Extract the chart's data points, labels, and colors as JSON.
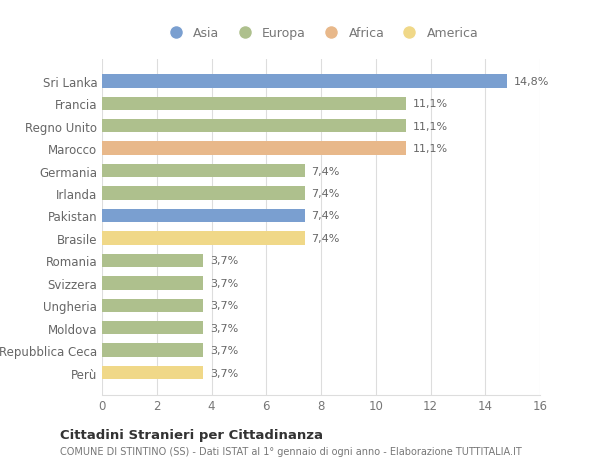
{
  "categories": [
    "Sri Lanka",
    "Francia",
    "Regno Unito",
    "Marocco",
    "Germania",
    "Irlanda",
    "Pakistan",
    "Brasile",
    "Romania",
    "Svizzera",
    "Ungheria",
    "Moldova",
    "Repubblica Ceca",
    "Perù"
  ],
  "values": [
    14.8,
    11.1,
    11.1,
    11.1,
    7.4,
    7.4,
    7.4,
    7.4,
    3.7,
    3.7,
    3.7,
    3.7,
    3.7,
    3.7
  ],
  "value_labels": [
    "14,8%",
    "11,1%",
    "11,1%",
    "11,1%",
    "7,4%",
    "7,4%",
    "7,4%",
    "7,4%",
    "3,7%",
    "3,7%",
    "3,7%",
    "3,7%",
    "3,7%",
    "3,7%"
  ],
  "colors": [
    "#7a9fd0",
    "#aec08d",
    "#aec08d",
    "#e8b88a",
    "#aec08d",
    "#aec08d",
    "#7a9fd0",
    "#f0d888",
    "#aec08d",
    "#aec08d",
    "#aec08d",
    "#aec08d",
    "#aec08d",
    "#f0d888"
  ],
  "continent_labels": [
    "Asia",
    "Europa",
    "Africa",
    "America"
  ],
  "continent_colors": [
    "#7a9fd0",
    "#aec08d",
    "#e8b88a",
    "#f0d888"
  ],
  "title": "Cittadini Stranieri per Cittadinanza",
  "subtitle": "COMUNE DI STINTINO (SS) - Dati ISTAT al 1° gennaio di ogni anno - Elaborazione TUTTITALIA.IT",
  "xlim": [
    0,
    16
  ],
  "xticks": [
    0,
    2,
    4,
    6,
    8,
    10,
    12,
    14,
    16
  ],
  "background_color": "#ffffff",
  "grid_color": "#dddddd",
  "text_color": "#777777",
  "label_color": "#666666"
}
